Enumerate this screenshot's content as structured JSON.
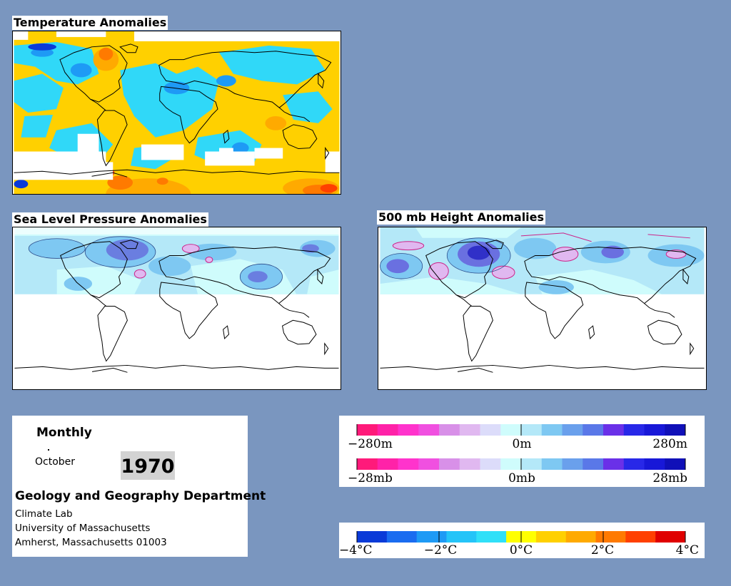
{
  "panels": {
    "temperature": {
      "title": "Temperature Anomalies"
    },
    "slp": {
      "title": "Sea Level Pressure Anomalies"
    },
    "height": {
      "title": "500 mb Height Anomalies"
    }
  },
  "info": {
    "period": "Monthly",
    "month": "October",
    "year": "1970",
    "department": "Geology and Geography Department",
    "lab": "Climate Lab",
    "university": "University of Massachusetts",
    "address": "Amherst, Massachusetts 01003"
  },
  "legends": {
    "height": {
      "labels": [
        "−280m",
        "0m",
        "280m"
      ]
    },
    "pressure": {
      "labels": [
        "−28mb",
        "0mb",
        "28mb"
      ]
    },
    "temperature": {
      "labels": [
        "−4°C",
        "−2°C",
        "0°C",
        "2°C",
        "4°C"
      ]
    }
  },
  "colors": {
    "background": "#7a96bf",
    "pressure_scale": [
      "#ff1a7a",
      "#ff22a8",
      "#ff33cc",
      "#f050e0",
      "#d890e8",
      "#e0b8f0",
      "#dcdcfa",
      "#cffcfc",
      "#b4e8f8",
      "#7ec8f2",
      "#6aa0ec",
      "#5a78e8",
      "#6a30e8",
      "#2828e8",
      "#1818d8",
      "#1010b8"
    ],
    "temperature_scale": [
      "#0a3ad8",
      "#1a6cf0",
      "#1e9af5",
      "#24c4f8",
      "#30e0f8",
      "#ffff00",
      "#ffd000",
      "#ffaa00",
      "#ff7a00",
      "#ff4000",
      "#e00000"
    ]
  }
}
